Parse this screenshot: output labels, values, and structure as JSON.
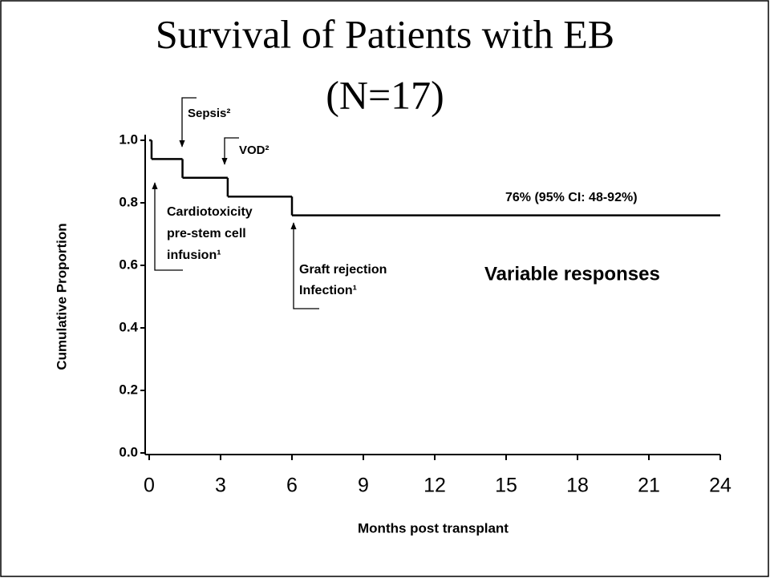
{
  "chart_data": {
    "type": "line",
    "step": "post",
    "title": [
      "Survival of Patients with EB",
      "(N=17)"
    ],
    "xlabel": "Months post transplant",
    "ylabel": "Cumulative Proportion",
    "x": [
      0,
      0.1,
      1.4,
      3.3,
      6,
      24
    ],
    "values": [
      1,
      0.94,
      0.88,
      0.82,
      0.76,
      0.76
    ],
    "color": "#000000",
    "xlim": [
      0,
      24
    ],
    "xticks": [
      0,
      3,
      6,
      9,
      12,
      15,
      18,
      21,
      24
    ],
    "ylim": [
      0,
      1
    ],
    "yticks": [
      {
        "value": 0,
        "label": "0.0"
      },
      {
        "value": 0.2,
        "label": "0.2"
      },
      {
        "value": 0.4,
        "label": "0.4"
      },
      {
        "value": 0.6,
        "label": "0.6"
      },
      {
        "value": 0.8,
        "label": "0.8"
      },
      {
        "value": 1,
        "label": "1.0"
      }
    ],
    "annotations": [
      [
        "Sepsis²"
      ],
      [
        "VOD²"
      ],
      [
        "Cardiotoxicity",
        "pre-stem cell",
        "infusion¹"
      ],
      [
        "Graft rejection",
        " Infection¹"
      ],
      [
        "76% (95% CI: 48-92%)"
      ],
      [
        "Variable responses"
      ]
    ]
  }
}
